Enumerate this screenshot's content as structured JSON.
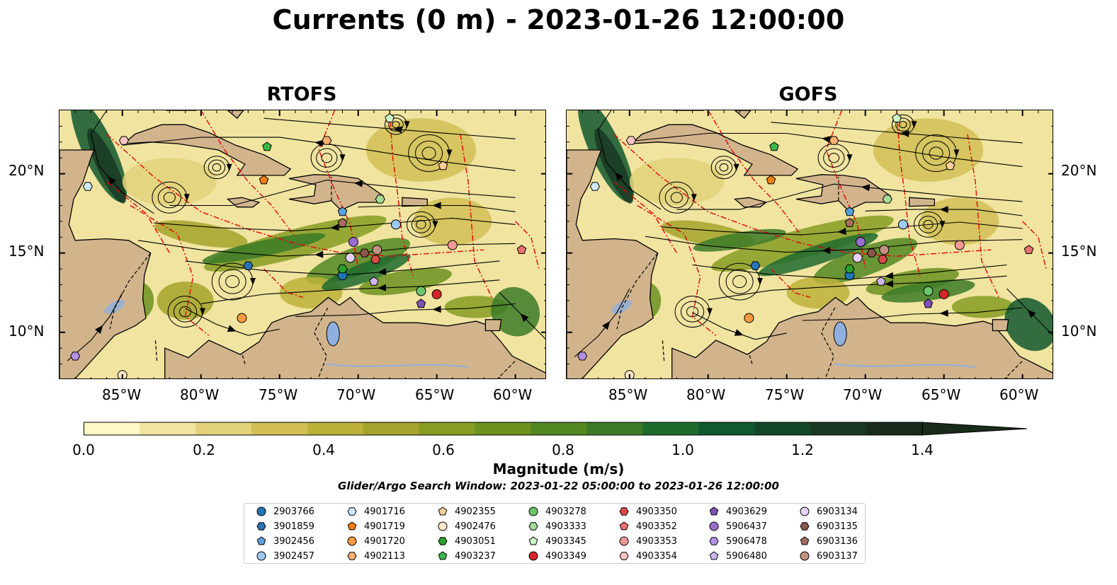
{
  "title": "Currents (0 m) - 2023-01-26 12:00:00",
  "panels": [
    {
      "id": "rtofs",
      "title": "RTOFS"
    },
    {
      "id": "gofs",
      "title": "GOFS"
    }
  ],
  "axes": {
    "lon_ticks": [
      "85°W",
      "80°W",
      "75°W",
      "70°W",
      "65°W",
      "60°W"
    ],
    "lat_ticks": [
      "20°N",
      "15°N",
      "10°N"
    ],
    "lon_range": [
      -89,
      -58
    ],
    "lat_range": [
      7,
      24
    ]
  },
  "colorbar": {
    "label": "Magnitude (m/s)",
    "ticks": [
      "0.0",
      "0.2",
      "0.4",
      "0.6",
      "0.8",
      "1.0",
      "1.2",
      "1.4"
    ],
    "range": [
      0,
      1.5
    ],
    "extend": "max",
    "colors": [
      "#fdf8c6",
      "#f0e4a0",
      "#e2d27a",
      "#d1bf55",
      "#bcb23a",
      "#a3a42c",
      "#869c22",
      "#6c9220",
      "#528722",
      "#3c7a27",
      "#1e6b2e",
      "#12582e",
      "#144628",
      "#183823",
      "#1a2a1a"
    ]
  },
  "map_colors": {
    "land": "#d2b48c",
    "lakes": "#8fb0de",
    "eez": "#e8000b",
    "coastline": "#000000",
    "border": "#000000"
  },
  "search_window": "Glider/Argo Search Window: 2023-01-22 05:00:00 to 2023-01-26 12:00:00",
  "floats": [
    {
      "id": "2903766",
      "color": "#1f77b4",
      "shape": "circle",
      "lon": -71.0,
      "lat": 13.6
    },
    {
      "id": "3901859",
      "color": "#2b72b8",
      "shape": "hexagon",
      "lon": -77.0,
      "lat": 14.2
    },
    {
      "id": "3902456",
      "color": "#5aa0e0",
      "shape": "pentagon",
      "lon": -71.0,
      "lat": 17.6
    },
    {
      "id": "3902457",
      "color": "#9ec9f0",
      "shape": "circle",
      "lon": -67.6,
      "lat": 16.8
    },
    {
      "id": "4901716",
      "color": "#cfe8fb",
      "shape": "hexagon",
      "lon": -87.2,
      "lat": 19.2
    },
    {
      "id": "4901719",
      "color": "#f07f10",
      "shape": "pentagon",
      "lon": -76.0,
      "lat": 19.6
    },
    {
      "id": "4901720",
      "color": "#f59a3e",
      "shape": "circle",
      "lon": -77.4,
      "lat": 10.9
    },
    {
      "id": "4902113",
      "color": "#f9b06e",
      "shape": "hexagon",
      "lon": -72.0,
      "lat": 22.1
    },
    {
      "id": "4902355",
      "color": "#fbcf9a",
      "shape": "pentagon",
      "lon": -64.6,
      "lat": 20.5
    },
    {
      "id": "4902476",
      "color": "#fde4c8",
      "shape": "circle",
      "lon": -85.0,
      "lat": 7.3
    },
    {
      "id": "4903051",
      "color": "#2ca02c",
      "shape": "hexagon",
      "lon": -71.0,
      "lat": 14.0
    },
    {
      "id": "4903237",
      "color": "#3cb84a",
      "shape": "pentagon",
      "lon": -75.8,
      "lat": 21.7
    },
    {
      "id": "4903278",
      "color": "#6dc56a",
      "shape": "circle",
      "lon": -66.0,
      "lat": 12.6
    },
    {
      "id": "4903333",
      "color": "#a4dc98",
      "shape": "hexagon",
      "lon": -68.6,
      "lat": 18.4
    },
    {
      "id": "4903345",
      "color": "#c9f6c6",
      "shape": "pentagon",
      "lon": -68.0,
      "lat": 23.5
    },
    {
      "id": "4903349",
      "color": "#d62728",
      "shape": "circle",
      "lon": -65.0,
      "lat": 12.4
    },
    {
      "id": "4903350",
      "color": "#de4a4a",
      "shape": "hexagon",
      "lon": -68.9,
      "lat": 14.6
    },
    {
      "id": "4903352",
      "color": "#e8706e",
      "shape": "pentagon",
      "lon": -59.6,
      "lat": 15.2
    },
    {
      "id": "4903353",
      "color": "#f29a98",
      "shape": "circle",
      "lon": -64.0,
      "lat": 15.5
    },
    {
      "id": "4903354",
      "color": "#fbc4c2",
      "shape": "hexagon",
      "lon": -84.9,
      "lat": 22.1
    },
    {
      "id": "4903629",
      "color": "#7e52b6",
      "shape": "pentagon",
      "lon": -66.0,
      "lat": 11.8
    },
    {
      "id": "5906437",
      "color": "#9a6dd0",
      "shape": "circle",
      "lon": -70.3,
      "lat": 15.7
    },
    {
      "id": "5906478",
      "color": "#b391e0",
      "shape": "hexagon",
      "lon": -88.0,
      "lat": 8.5
    },
    {
      "id": "5906480",
      "color": "#cdb5ee",
      "shape": "pentagon",
      "lon": -69.0,
      "lat": 13.2
    },
    {
      "id": "6903134",
      "color": "#e6d2f8",
      "shape": "circle",
      "lon": -70.5,
      "lat": 14.7
    },
    {
      "id": "6903135",
      "color": "#8c564b",
      "shape": "hexagon",
      "lon": -69.6,
      "lat": 15.0
    },
    {
      "id": "6903136",
      "color": "#a86d5e",
      "shape": "pentagon",
      "lon": -71.0,
      "lat": 16.9
    },
    {
      "id": "6903137",
      "color": "#c49282",
      "shape": "circle",
      "lon": -68.8,
      "lat": 15.2
    }
  ]
}
